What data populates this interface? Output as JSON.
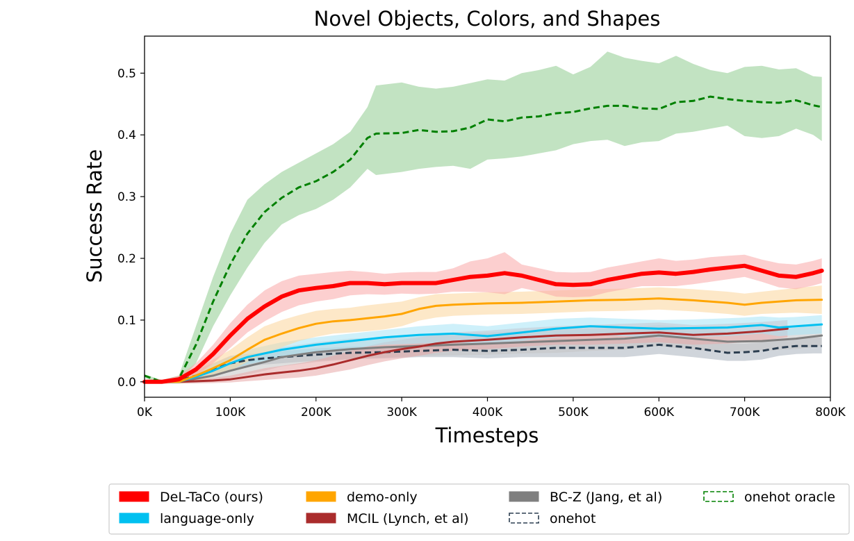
{
  "chart_data": {
    "type": "line",
    "title": "Novel Objects, Colors, and Shapes",
    "xlabel": "Timesteps",
    "ylabel": "Success Rate",
    "xlim": [
      0,
      800000
    ],
    "ylim": [
      -0.025,
      0.56
    ],
    "x_ticks": [
      {
        "value": 0,
        "label": "0K"
      },
      {
        "value": 100000,
        "label": "100K"
      },
      {
        "value": 200000,
        "label": "200K"
      },
      {
        "value": 300000,
        "label": "300K"
      },
      {
        "value": 400000,
        "label": "400K"
      },
      {
        "value": 500000,
        "label": "500K"
      },
      {
        "value": 600000,
        "label": "600K"
      },
      {
        "value": 700000,
        "label": "700K"
      },
      {
        "value": 800000,
        "label": "800K"
      }
    ],
    "y_ticks": [
      {
        "value": 0.0,
        "label": "0.0"
      },
      {
        "value": 0.1,
        "label": "0.1"
      },
      {
        "value": 0.2,
        "label": "0.2"
      },
      {
        "value": 0.3,
        "label": "0.3"
      },
      {
        "value": 0.4,
        "label": "0.4"
      },
      {
        "value": 0.5,
        "label": "0.5"
      }
    ],
    "grid": false,
    "legend_placement": "bottom, outside plot",
    "series": [
      {
        "name": "onehot oracle",
        "color": "#008000",
        "band_color": "#8fcc8f",
        "style": "dashed",
        "x": [
          0,
          20000,
          40000,
          60000,
          80000,
          100000,
          120000,
          140000,
          160000,
          180000,
          200000,
          220000,
          240000,
          260000,
          270000,
          300000,
          320000,
          340000,
          360000,
          380000,
          400000,
          420000,
          440000,
          460000,
          480000,
          500000,
          520000,
          540000,
          560000,
          580000,
          600000,
          620000,
          640000,
          660000,
          680000,
          700000,
          720000,
          740000,
          760000,
          780000,
          790000
        ],
        "y": [
          0.01,
          0.0,
          0.005,
          0.06,
          0.13,
          0.19,
          0.24,
          0.275,
          0.298,
          0.315,
          0.325,
          0.34,
          0.36,
          0.395,
          0.402,
          0.403,
          0.408,
          0.405,
          0.406,
          0.412,
          0.425,
          0.422,
          0.428,
          0.43,
          0.435,
          0.437,
          0.443,
          0.447,
          0.447,
          0.443,
          0.442,
          0.453,
          0.455,
          0.462,
          0.458,
          0.455,
          0.453,
          0.452,
          0.456,
          0.448,
          0.445
        ],
        "upper": [
          0.012,
          0.003,
          0.01,
          0.09,
          0.17,
          0.24,
          0.295,
          0.32,
          0.34,
          0.355,
          0.37,
          0.385,
          0.405,
          0.445,
          0.48,
          0.485,
          0.478,
          0.475,
          0.478,
          0.484,
          0.49,
          0.488,
          0.5,
          0.505,
          0.512,
          0.498,
          0.51,
          0.535,
          0.525,
          0.52,
          0.516,
          0.528,
          0.515,
          0.505,
          0.5,
          0.51,
          0.512,
          0.506,
          0.508,
          0.495,
          0.494
        ],
        "lower": [
          0.006,
          -0.003,
          0.0,
          0.03,
          0.09,
          0.14,
          0.185,
          0.225,
          0.255,
          0.27,
          0.28,
          0.295,
          0.315,
          0.345,
          0.335,
          0.34,
          0.345,
          0.348,
          0.35,
          0.345,
          0.36,
          0.362,
          0.365,
          0.37,
          0.375,
          0.385,
          0.39,
          0.392,
          0.382,
          0.388,
          0.39,
          0.402,
          0.405,
          0.41,
          0.415,
          0.398,
          0.395,
          0.398,
          0.41,
          0.4,
          0.39
        ]
      },
      {
        "name": "onehot",
        "color": "#2c3e50",
        "band_color": "#aab3bd",
        "style": "dashed",
        "x": [
          0,
          20000,
          40000,
          60000,
          80000,
          100000,
          120000,
          140000,
          160000,
          180000,
          200000,
          240000,
          280000,
          320000,
          360000,
          400000,
          440000,
          480000,
          520000,
          560000,
          600000,
          640000,
          680000,
          700000,
          720000,
          740000,
          760000,
          780000,
          790000
        ],
        "y": [
          0.0,
          0.0,
          0.002,
          0.01,
          0.02,
          0.03,
          0.035,
          0.038,
          0.04,
          0.042,
          0.044,
          0.047,
          0.048,
          0.05,
          0.052,
          0.05,
          0.052,
          0.055,
          0.055,
          0.055,
          0.06,
          0.055,
          0.047,
          0.048,
          0.05,
          0.055,
          0.058,
          0.058,
          0.058
        ],
        "upper": [
          0.003,
          0.003,
          0.005,
          0.02,
          0.03,
          0.042,
          0.045,
          0.048,
          0.05,
          0.052,
          0.054,
          0.057,
          0.058,
          0.062,
          0.064,
          0.064,
          0.066,
          0.07,
          0.07,
          0.07,
          0.075,
          0.07,
          0.062,
          0.062,
          0.064,
          0.068,
          0.07,
          0.072,
          0.072
        ],
        "lower": [
          -0.003,
          -0.003,
          0.0,
          0.002,
          0.01,
          0.018,
          0.025,
          0.028,
          0.03,
          0.032,
          0.034,
          0.037,
          0.038,
          0.04,
          0.04,
          0.038,
          0.04,
          0.04,
          0.04,
          0.04,
          0.045,
          0.04,
          0.034,
          0.034,
          0.036,
          0.042,
          0.045,
          0.046,
          0.046
        ]
      },
      {
        "name": "BC-Z (Jang, et al)",
        "color": "#7f7f7f",
        "band_color": "#c4c4c4",
        "style": "solid",
        "x": [
          0,
          40000,
          60000,
          80000,
          100000,
          120000,
          140000,
          160000,
          200000,
          240000,
          280000,
          320000,
          360000,
          400000,
          440000,
          480000,
          520000,
          560000,
          600000,
          640000,
          680000,
          720000,
          760000,
          790000
        ],
        "y": [
          0.0,
          0.0,
          0.005,
          0.01,
          0.018,
          0.025,
          0.032,
          0.04,
          0.048,
          0.053,
          0.056,
          0.058,
          0.06,
          0.062,
          0.064,
          0.066,
          0.068,
          0.07,
          0.075,
          0.07,
          0.065,
          0.066,
          0.07,
          0.075
        ],
        "upper": [
          0.003,
          0.003,
          0.012,
          0.02,
          0.03,
          0.04,
          0.048,
          0.056,
          0.064,
          0.07,
          0.072,
          0.075,
          0.078,
          0.08,
          0.082,
          0.084,
          0.086,
          0.088,
          0.092,
          0.088,
          0.082,
          0.083,
          0.088,
          0.092
        ],
        "lower": [
          -0.003,
          -0.003,
          -0.002,
          0.0,
          0.006,
          0.012,
          0.018,
          0.025,
          0.032,
          0.036,
          0.04,
          0.042,
          0.043,
          0.044,
          0.046,
          0.047,
          0.05,
          0.052,
          0.058,
          0.052,
          0.048,
          0.05,
          0.053,
          0.058
        ]
      },
      {
        "name": "MCIL (Lynch, et al)",
        "color": "#aa2c2c",
        "band_color": "#e8a8a8",
        "style": "solid",
        "x": [
          0,
          40000,
          80000,
          100000,
          120000,
          140000,
          160000,
          180000,
          200000,
          220000,
          240000,
          260000,
          280000,
          300000,
          320000,
          340000,
          360000,
          400000,
          440000,
          480000,
          520000,
          560000,
          600000,
          640000,
          680000,
          720000,
          750000
        ],
        "y": [
          0.0,
          0.0,
          0.002,
          0.004,
          0.008,
          0.012,
          0.015,
          0.018,
          0.022,
          0.028,
          0.035,
          0.042,
          0.048,
          0.053,
          0.057,
          0.062,
          0.065,
          0.068,
          0.072,
          0.075,
          0.076,
          0.078,
          0.08,
          0.076,
          0.078,
          0.082,
          0.086
        ],
        "upper": [
          0.003,
          0.003,
          0.006,
          0.01,
          0.016,
          0.022,
          0.026,
          0.03,
          0.035,
          0.042,
          0.05,
          0.058,
          0.064,
          0.068,
          0.072,
          0.076,
          0.08,
          0.083,
          0.087,
          0.09,
          0.092,
          0.094,
          0.096,
          0.092,
          0.094,
          0.097,
          0.1
        ],
        "lower": [
          -0.003,
          -0.003,
          -0.002,
          -0.001,
          0.001,
          0.003,
          0.005,
          0.007,
          0.01,
          0.015,
          0.02,
          0.027,
          0.033,
          0.038,
          0.042,
          0.047,
          0.05,
          0.053,
          0.057,
          0.06,
          0.06,
          0.062,
          0.064,
          0.06,
          0.062,
          0.067,
          0.072
        ]
      },
      {
        "name": "language-only",
        "color": "#00c0f0",
        "band_color": "#a6e3f5",
        "style": "solid",
        "x": [
          0,
          40000,
          60000,
          80000,
          100000,
          120000,
          140000,
          160000,
          180000,
          200000,
          240000,
          280000,
          320000,
          360000,
          400000,
          440000,
          480000,
          520000,
          560000,
          600000,
          640000,
          680000,
          700000,
          720000,
          740000,
          760000,
          790000
        ],
        "y": [
          0.0,
          0.0,
          0.008,
          0.018,
          0.03,
          0.04,
          0.046,
          0.052,
          0.056,
          0.06,
          0.066,
          0.072,
          0.076,
          0.078,
          0.074,
          0.08,
          0.086,
          0.09,
          0.088,
          0.086,
          0.087,
          0.088,
          0.09,
          0.092,
          0.088,
          0.09,
          0.093
        ],
        "upper": [
          0.003,
          0.003,
          0.014,
          0.026,
          0.04,
          0.052,
          0.058,
          0.064,
          0.068,
          0.072,
          0.078,
          0.084,
          0.09,
          0.094,
          0.09,
          0.096,
          0.102,
          0.104,
          0.102,
          0.1,
          0.101,
          0.103,
          0.104,
          0.106,
          0.104,
          0.105,
          0.108
        ],
        "lower": [
          -0.003,
          -0.003,
          0.002,
          0.01,
          0.02,
          0.028,
          0.034,
          0.04,
          0.044,
          0.048,
          0.054,
          0.06,
          0.062,
          0.064,
          0.06,
          0.066,
          0.072,
          0.076,
          0.074,
          0.072,
          0.073,
          0.074,
          0.076,
          0.078,
          0.074,
          0.076,
          0.078
        ]
      },
      {
        "name": "demo-only",
        "color": "#ffa500",
        "band_color": "#fbd59a",
        "style": "solid",
        "x": [
          0,
          40000,
          60000,
          80000,
          100000,
          120000,
          140000,
          160000,
          180000,
          200000,
          220000,
          240000,
          260000,
          280000,
          300000,
          320000,
          340000,
          360000,
          380000,
          400000,
          440000,
          480000,
          520000,
          560000,
          600000,
          640000,
          680000,
          700000,
          720000,
          760000,
          790000
        ],
        "y": [
          0.0,
          0.0,
          0.01,
          0.022,
          0.035,
          0.052,
          0.068,
          0.078,
          0.087,
          0.094,
          0.098,
          0.1,
          0.103,
          0.106,
          0.11,
          0.118,
          0.123,
          0.125,
          0.126,
          0.127,
          0.128,
          0.13,
          0.132,
          0.133,
          0.135,
          0.132,
          0.128,
          0.125,
          0.128,
          0.132,
          0.133
        ],
        "upper": [
          0.003,
          0.003,
          0.02,
          0.036,
          0.052,
          0.072,
          0.09,
          0.1,
          0.108,
          0.115,
          0.118,
          0.12,
          0.124,
          0.127,
          0.13,
          0.137,
          0.142,
          0.143,
          0.144,
          0.145,
          0.146,
          0.148,
          0.15,
          0.151,
          0.153,
          0.15,
          0.146,
          0.143,
          0.146,
          0.152,
          0.156
        ],
        "lower": [
          -0.003,
          -0.003,
          0.0,
          0.008,
          0.018,
          0.032,
          0.046,
          0.056,
          0.066,
          0.073,
          0.078,
          0.08,
          0.082,
          0.085,
          0.09,
          0.099,
          0.104,
          0.107,
          0.108,
          0.109,
          0.11,
          0.112,
          0.114,
          0.115,
          0.117,
          0.114,
          0.11,
          0.107,
          0.11,
          0.112,
          0.11
        ]
      },
      {
        "name": "DeL-TaCo (ours)",
        "color": "#ff0000",
        "band_color": "#f9a7a7",
        "style": "solid",
        "x": [
          0,
          20000,
          40000,
          60000,
          80000,
          100000,
          120000,
          140000,
          160000,
          180000,
          200000,
          220000,
          240000,
          260000,
          280000,
          300000,
          320000,
          340000,
          360000,
          380000,
          400000,
          420000,
          440000,
          460000,
          480000,
          500000,
          520000,
          540000,
          560000,
          580000,
          600000,
          620000,
          640000,
          660000,
          680000,
          700000,
          720000,
          740000,
          760000,
          780000,
          790000
        ],
        "y": [
          0.0,
          0.0,
          0.004,
          0.02,
          0.045,
          0.075,
          0.102,
          0.122,
          0.138,
          0.148,
          0.152,
          0.155,
          0.16,
          0.16,
          0.158,
          0.16,
          0.16,
          0.16,
          0.165,
          0.17,
          0.172,
          0.176,
          0.172,
          0.165,
          0.158,
          0.157,
          0.158,
          0.165,
          0.17,
          0.175,
          0.177,
          0.175,
          0.178,
          0.182,
          0.185,
          0.188,
          0.18,
          0.172,
          0.17,
          0.176,
          0.18
        ],
        "upper": [
          0.003,
          0.003,
          0.01,
          0.03,
          0.06,
          0.095,
          0.125,
          0.148,
          0.163,
          0.172,
          0.175,
          0.178,
          0.18,
          0.178,
          0.175,
          0.177,
          0.178,
          0.178,
          0.184,
          0.195,
          0.2,
          0.21,
          0.19,
          0.184,
          0.178,
          0.177,
          0.178,
          0.185,
          0.19,
          0.195,
          0.2,
          0.196,
          0.198,
          0.202,
          0.204,
          0.206,
          0.198,
          0.192,
          0.19,
          0.196,
          0.2
        ],
        "lower": [
          -0.003,
          -0.003,
          -0.001,
          0.01,
          0.03,
          0.055,
          0.08,
          0.098,
          0.113,
          0.124,
          0.13,
          0.134,
          0.14,
          0.142,
          0.141,
          0.143,
          0.142,
          0.143,
          0.146,
          0.146,
          0.145,
          0.142,
          0.152,
          0.146,
          0.138,
          0.137,
          0.138,
          0.145,
          0.15,
          0.155,
          0.155,
          0.155,
          0.158,
          0.162,
          0.166,
          0.17,
          0.162,
          0.153,
          0.15,
          0.156,
          0.16
        ]
      }
    ],
    "legend": [
      {
        "label": "DeL-TaCo (ours)",
        "color": "#ff0000",
        "style": "solid"
      },
      {
        "label": "language-only",
        "color": "#00c0f0",
        "style": "solid"
      },
      {
        "label": "demo-only",
        "color": "#ffa500",
        "style": "solid"
      },
      {
        "label": "MCIL (Lynch, et al)",
        "color": "#aa2c2c",
        "style": "solid"
      },
      {
        "label": "BC-Z (Jang, et al)",
        "color": "#7f7f7f",
        "style": "solid"
      },
      {
        "label": "onehot",
        "color": "#2c3e50",
        "style": "dashed"
      },
      {
        "label": "onehot oracle",
        "color": "#008000",
        "style": "dashed"
      }
    ]
  }
}
